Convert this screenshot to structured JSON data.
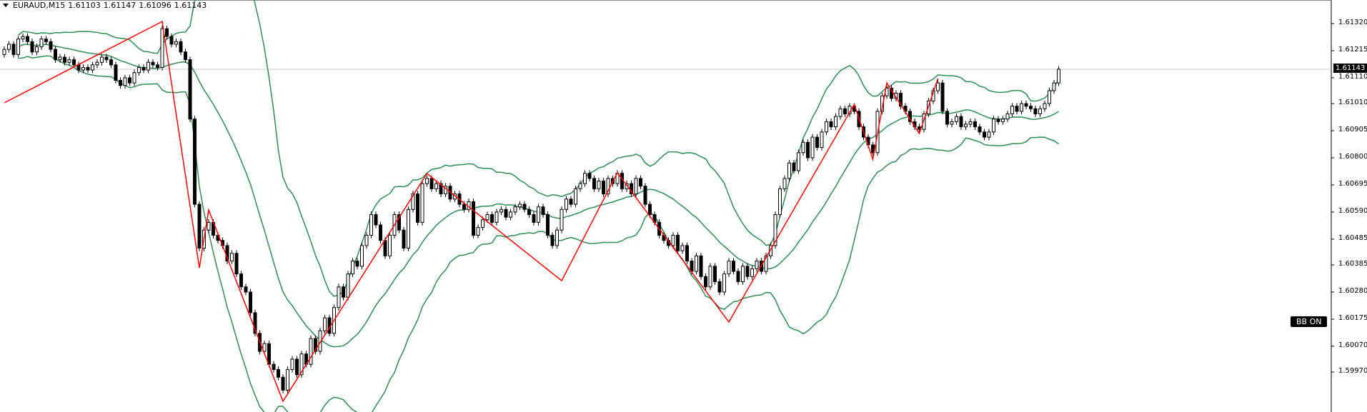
{
  "header": {
    "symbol_timeframe": "EURAUD,M15",
    "open": "1.61103",
    "high": "1.61147",
    "low": "1.61096",
    "close": "1.61143"
  },
  "bb_button": {
    "label": "BB ON"
  },
  "colors": {
    "bands": "#2e8b57",
    "zigzag": "#ff0000",
    "bull_body": "#ffffff",
    "bear_body": "#000000",
    "price_line": "#c8c8c8"
  },
  "chart_data": {
    "type": "candlestick",
    "symbol": "EURAUD",
    "timeframe": "M15",
    "current_price": "1.61143",
    "y_ticks": [
      "1.61320",
      "1.61215",
      "1.61110",
      "1.61010",
      "1.60905",
      "1.60800",
      "1.60695",
      "1.60590",
      "1.60485",
      "1.60385",
      "1.60280",
      "1.60175",
      "1.60070",
      "1.59970"
    ],
    "ylim": [
      1.5981,
      1.6143
    ],
    "indicators": [
      "Bollinger Bands (20, 2)",
      "ZigZag"
    ],
    "closes": [
      1.6122,
      1.6124,
      1.612,
      1.6126,
      1.6127,
      1.6125,
      1.6121,
      1.6123,
      1.6126,
      1.6125,
      1.6122,
      1.6118,
      1.6119,
      1.6117,
      1.6118,
      1.6116,
      1.6114,
      1.6115,
      1.6114,
      1.6116,
      1.6117,
      1.6119,
      1.6118,
      1.6116,
      1.611,
      1.6108,
      1.6111,
      1.6109,
      1.6113,
      1.6115,
      1.6114,
      1.6117,
      1.6116,
      1.6115,
      1.613,
      1.6127,
      1.6124,
      1.6125,
      1.6121,
      1.6118,
      1.6095,
      1.6062,
      1.6045,
      1.6052,
      1.6055,
      1.605,
      1.6048,
      1.6046,
      1.604,
      1.6043,
      1.6035,
      1.603,
      1.6028,
      1.602,
      1.6012,
      1.6005,
      1.6008,
      1.6,
      1.5998,
      1.5995,
      1.599,
      1.5998,
      1.6002,
      1.5996,
      1.6004,
      1.6,
      1.601,
      1.6005,
      1.6013,
      1.6018,
      1.6012,
      1.6022,
      1.603,
      1.6026,
      1.6035,
      1.604,
      1.6038,
      1.6046,
      1.605,
      1.6058,
      1.6054,
      1.6048,
      1.6042,
      1.605,
      1.6058,
      1.6052,
      1.6045,
      1.606,
      1.6066,
      1.6055,
      1.607,
      1.6072,
      1.6068,
      1.607,
      1.6066,
      1.6069,
      1.6064,
      1.6066,
      1.6062,
      1.606,
      1.6063,
      1.605,
      1.6053,
      1.6056,
      1.6058,
      1.6055,
      1.6059,
      1.606,
      1.6057,
      1.6059,
      1.6061,
      1.6062,
      1.606,
      1.6058,
      1.6055,
      1.6061,
      1.6058,
      1.605,
      1.6046,
      1.6052,
      1.606,
      1.6064,
      1.6062,
      1.6068,
      1.607,
      1.6074,
      1.6072,
      1.6068,
      1.6071,
      1.6066,
      1.6072,
      1.607,
      1.6074,
      1.6068,
      1.607,
      1.6066,
      1.6072,
      1.6069,
      1.6062,
      1.6058,
      1.6055,
      1.605,
      1.6048,
      1.6046,
      1.605,
      1.6044,
      1.6046,
      1.604,
      1.6036,
      1.6042,
      1.6034,
      1.603,
      1.6038,
      1.6032,
      1.6028,
      1.6035,
      1.604,
      1.6036,
      1.6032,
      1.6038,
      1.6034,
      1.6037,
      1.604,
      1.6036,
      1.6042,
      1.6046,
      1.6058,
      1.6068,
      1.6072,
      1.6078,
      1.6075,
      1.6082,
      1.6086,
      1.608,
      1.6088,
      1.6084,
      1.609,
      1.6094,
      1.6092,
      1.6096,
      1.6099,
      1.6097,
      1.61,
      1.6098,
      1.6092,
      1.6088,
      1.6085,
      1.6082,
      1.6098,
      1.6104,
      1.6107,
      1.6103,
      1.6105,
      1.61,
      1.6098,
      1.6094,
      1.6092,
      1.6091,
      1.6097,
      1.6102,
      1.6106,
      1.6109,
      1.6098,
      1.6093,
      1.6094,
      1.6096,
      1.6092,
      1.6093,
      1.6094,
      1.6092,
      1.609,
      1.6088,
      1.609,
      1.6095,
      1.6094,
      1.6095,
      1.6097,
      1.61,
      1.6098,
      1.6101,
      1.61,
      1.6099,
      1.6097,
      1.6099,
      1.6101,
      1.6106,
      1.6109,
      1.61143
    ],
    "zigzag": [
      [
        0,
        1.61013
      ],
      [
        34,
        1.61328
      ],
      [
        42,
        1.60374
      ],
      [
        44,
        1.60598
      ],
      [
        60,
        1.59857
      ],
      [
        91,
        1.60739
      ],
      [
        120,
        1.60324
      ],
      [
        132,
        1.60742
      ],
      [
        156,
        1.60164
      ],
      [
        183,
        1.61007
      ],
      [
        187,
        1.60794
      ],
      [
        190,
        1.6109
      ],
      [
        197,
        1.60894
      ],
      [
        201,
        1.61107
      ]
    ]
  }
}
